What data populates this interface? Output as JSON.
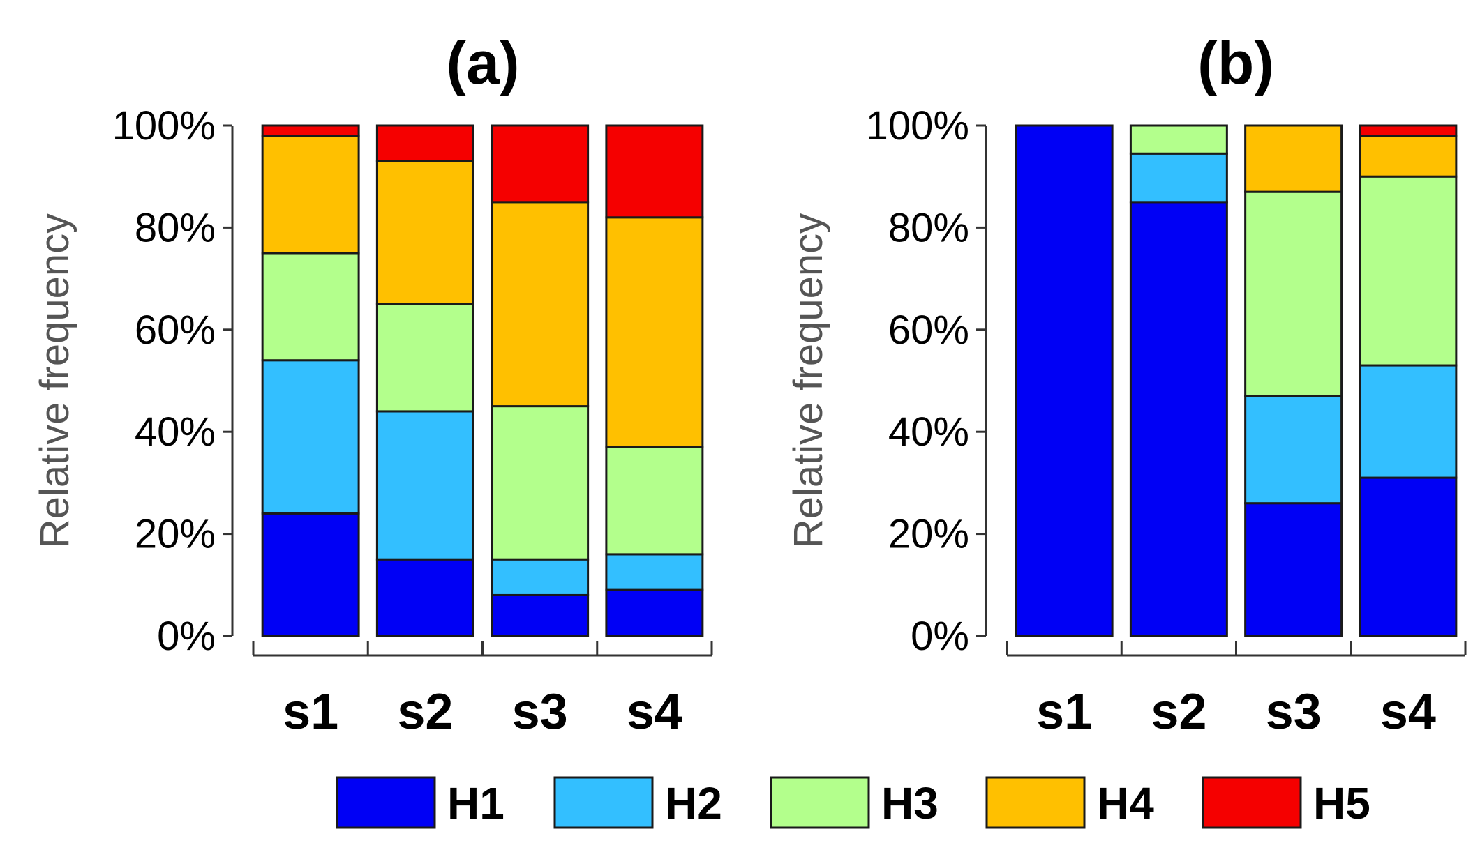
{
  "chart_data": [
    {
      "type": "bar",
      "stacked": true,
      "title": "(a)",
      "ylabel": "Relative frequency",
      "ylim": [
        0,
        100
      ],
      "yticks": [
        "0%",
        "20%",
        "40%",
        "60%",
        "80%",
        "100%"
      ],
      "categories": [
        "s1",
        "s2",
        "s3",
        "s4"
      ],
      "series": [
        {
          "name": "H1",
          "values": [
            24,
            15,
            8,
            9
          ]
        },
        {
          "name": "H2",
          "values": [
            30,
            29,
            7,
            7
          ]
        },
        {
          "name": "H3",
          "values": [
            21,
            21,
            30,
            21
          ]
        },
        {
          "name": "H4",
          "values": [
            23,
            28,
            40,
            45
          ]
        },
        {
          "name": "H5",
          "values": [
            2,
            7,
            15,
            18
          ]
        }
      ]
    },
    {
      "type": "bar",
      "stacked": true,
      "title": "(b)",
      "ylabel": "Relative frequency",
      "ylim": [
        0,
        100
      ],
      "yticks": [
        "0%",
        "20%",
        "40%",
        "60%",
        "80%",
        "100%"
      ],
      "categories": [
        "s1",
        "s2",
        "s3",
        "s4"
      ],
      "series": [
        {
          "name": "H1",
          "values": [
            100,
            85,
            26,
            31
          ]
        },
        {
          "name": "H2",
          "values": [
            0,
            9.5,
            21,
            22
          ]
        },
        {
          "name": "H3",
          "values": [
            0,
            5.5,
            40,
            37
          ]
        },
        {
          "name": "H4",
          "values": [
            0,
            0,
            13,
            8
          ]
        },
        {
          "name": "H5",
          "values": [
            0,
            0,
            0,
            2
          ]
        }
      ]
    }
  ],
  "legend": {
    "position": "bottom",
    "items": [
      {
        "label": "H1",
        "color": "#0000f5"
      },
      {
        "label": "H2",
        "color": "#33bfff"
      },
      {
        "label": "H3",
        "color": "#b3ff8c"
      },
      {
        "label": "H4",
        "color": "#ffc000"
      },
      {
        "label": "H5",
        "color": "#f50000"
      }
    ]
  }
}
